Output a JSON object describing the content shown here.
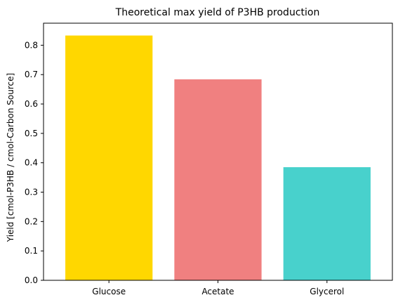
{
  "chart_data": {
    "type": "bar",
    "title": "Theoretical max yield of P3HB production",
    "xlabel": "",
    "ylabel": "Yield [cmol-P3HB / cmol-Carbon Source]",
    "categories": [
      "Glucose",
      "Acetate",
      "Glycerol"
    ],
    "values": [
      0.833,
      0.684,
      0.385
    ],
    "colors": [
      "#FFD700",
      "#F08080",
      "#48D1CC"
    ],
    "ylim": [
      0,
      0.875
    ],
    "yticks": [
      0.0,
      0.1,
      0.2,
      0.3,
      0.4,
      0.5,
      0.6,
      0.7,
      0.8
    ],
    "ytick_labels": [
      "0.0",
      "0.1",
      "0.2",
      "0.3",
      "0.4",
      "0.5",
      "0.6",
      "0.7",
      "0.8"
    ],
    "grid": false,
    "legend": "none"
  }
}
